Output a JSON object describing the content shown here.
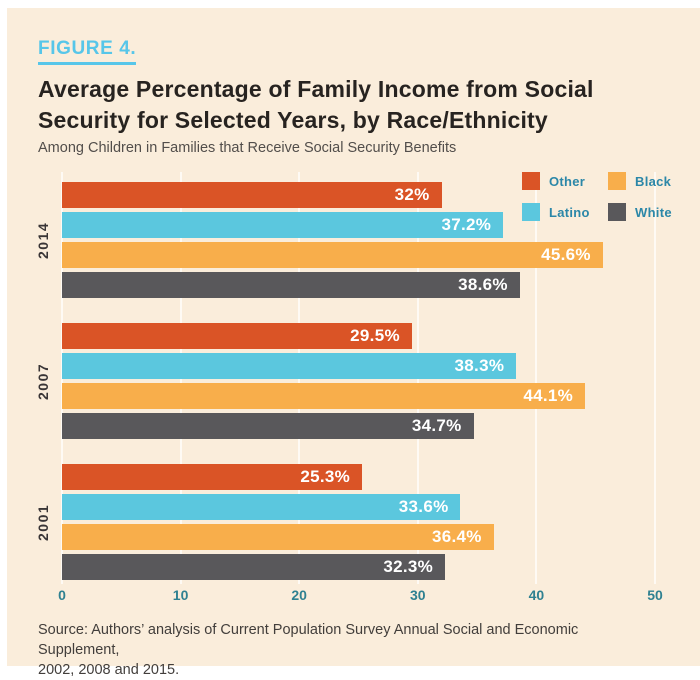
{
  "header": {
    "figure_label": "FIGURE 4.",
    "title_line1": "Average Percentage of Family Income from Social",
    "title_line2": "Security for Selected Years, by Race/Ethnicity",
    "subtitle": "Among Children in Families that Receive Social Security Benefits"
  },
  "colors": {
    "background": "#FAEDDB",
    "figure_label_blue": "#57C6E9",
    "title_text": "#272320",
    "axis_text_teal": "#2F8191",
    "legend_text_teal": "#2B87A8",
    "bar_label_white": "#FFFFFF",
    "gridline": "rgba(255,255,255,0.7)"
  },
  "legend": {
    "items": [
      {
        "label": "Other",
        "color": "#DA5426"
      },
      {
        "label": "Black",
        "color": "#F8AE4B"
      },
      {
        "label": "Latino",
        "color": "#5BC7DE"
      },
      {
        "label": "White",
        "color": "#59585B"
      }
    ]
  },
  "chart_data": {
    "type": "bar",
    "orientation": "horizontal",
    "title": "Average Percentage of Family Income from Social Security for Selected Years, by Race/Ethnicity",
    "subtitle": "Among Children in Families that Receive Social Security Benefits",
    "categories": [
      "2014",
      "2007",
      "2001"
    ],
    "bar_order_within_group": [
      "Other",
      "Latino",
      "Black",
      "White"
    ],
    "series": [
      {
        "name": "Other",
        "color": "#DA5426",
        "values": [
          32,
          29.5,
          25.3
        ],
        "labels": [
          "32%",
          "29.5%",
          "25.3%"
        ]
      },
      {
        "name": "Latino",
        "color": "#5BC7DE",
        "values": [
          37.2,
          38.3,
          33.6
        ],
        "labels": [
          "37.2%",
          "38.3%",
          "33.6%"
        ]
      },
      {
        "name": "Black",
        "color": "#F8AE4B",
        "values": [
          45.6,
          44.1,
          36.4
        ],
        "labels": [
          "45.6%",
          "44.1%",
          "36.4%"
        ]
      },
      {
        "name": "White",
        "color": "#59585B",
        "values": [
          38.6,
          34.7,
          32.3
        ],
        "labels": [
          "38.6%",
          "34.7%",
          "32.3%"
        ]
      }
    ],
    "xlabel": "",
    "ylabel": "",
    "xlim": [
      0,
      50
    ],
    "x_ticks": [
      0,
      10,
      20,
      30,
      40,
      50
    ],
    "grid": true,
    "legend_position": "top-right"
  },
  "source": {
    "line1": "Source: Authors’ analysis of Current Population Survey Annual Social and Economic Supplement,",
    "line2": "2002, 2008 and 2015."
  }
}
